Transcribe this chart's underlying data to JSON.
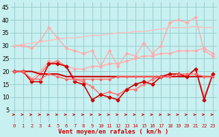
{
  "x": [
    0,
    1,
    2,
    3,
    4,
    5,
    6,
    7,
    8,
    9,
    10,
    11,
    12,
    13,
    14,
    15,
    16,
    17,
    18,
    19,
    20,
    21,
    22,
    23
  ],
  "series": [
    {
      "name": "rafales_max",
      "color": "#ffaaaa",
      "lw": 1.0,
      "marker": "D",
      "ms": 2.0,
      "y": [
        30,
        30,
        29,
        32,
        37,
        33,
        29,
        28,
        27,
        28,
        22,
        28,
        22,
        27,
        26,
        31,
        27,
        30,
        39,
        40,
        39,
        41,
        28,
        26
      ]
    },
    {
      "name": "rafales_trend",
      "color": "#ffbbbb",
      "lw": 1.0,
      "marker": null,
      "ms": 0,
      "y": [
        30,
        30.5,
        31,
        31.5,
        32,
        32.5,
        33,
        33,
        33.5,
        34,
        34,
        34.5,
        35,
        35,
        35.5,
        35.5,
        36,
        36.5,
        37,
        37,
        37,
        37.5,
        37,
        37
      ]
    },
    {
      "name": "vent_moyen_pink",
      "color": "#ffaaaa",
      "lw": 1.0,
      "marker": "D",
      "ms": 2.0,
      "y": [
        20,
        20,
        17,
        20,
        24,
        23,
        22,
        21,
        21,
        22,
        22,
        23,
        23,
        24,
        25,
        26,
        26,
        27,
        27,
        28,
        28,
        28,
        29,
        27
      ]
    },
    {
      "name": "vent_moyen_medium",
      "color": "#ff7777",
      "lw": 1.2,
      "marker": "D",
      "ms": 2.0,
      "y": [
        20,
        20,
        16,
        19,
        23,
        24,
        22,
        17,
        16,
        14,
        11,
        12,
        11,
        13,
        13,
        15,
        17,
        18,
        19,
        19,
        18,
        21,
        10,
        19
      ]
    },
    {
      "name": "vent_flat_dark",
      "color": "#cc0000",
      "lw": 1.5,
      "marker": null,
      "ms": 0,
      "y": [
        20,
        20,
        20,
        19,
        19,
        19,
        18,
        18,
        18,
        18,
        18,
        18,
        18,
        18,
        18,
        18,
        18,
        18,
        18,
        18,
        18,
        18,
        18,
        18
      ]
    },
    {
      "name": "vent_volatile_dark",
      "color": "#cc0000",
      "lw": 1.2,
      "marker": "D",
      "ms": 2.5,
      "y": [
        20,
        20,
        16,
        16,
        23,
        23,
        22,
        16,
        15,
        9,
        11,
        10,
        9,
        13,
        15,
        16,
        15,
        18,
        19,
        19,
        18,
        21,
        9,
        19
      ]
    },
    {
      "name": "vent_medium2",
      "color": "#ff6666",
      "lw": 1.0,
      "marker": "D",
      "ms": 1.8,
      "y": [
        20,
        20,
        17,
        17,
        19,
        18,
        17,
        17,
        17,
        17,
        17,
        17,
        18,
        18,
        18,
        18,
        18,
        18,
        18,
        19,
        19,
        19,
        18,
        18
      ]
    }
  ],
  "background_color": "#c8f0f0",
  "grid_color": "#99cccc",
  "text_color": "#cc0000",
  "xlabel": "Vent moyen/en rafales ( km/h )",
  "ylim": [
    0,
    47
  ],
  "yticks": [
    5,
    10,
    15,
    20,
    25,
    30,
    35,
    40,
    45
  ],
  "xticks": [
    0,
    1,
    2,
    3,
    4,
    5,
    6,
    7,
    8,
    9,
    10,
    11,
    12,
    13,
    14,
    15,
    16,
    17,
    18,
    19,
    20,
    21,
    22,
    23
  ]
}
